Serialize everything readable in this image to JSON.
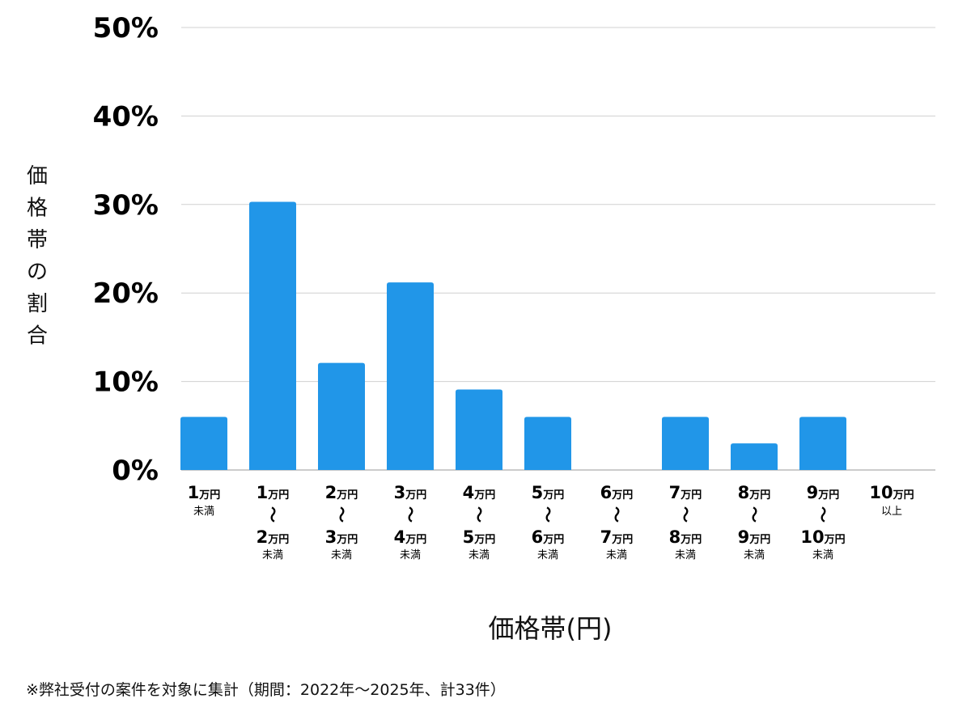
{
  "chart_data": {
    "type": "bar",
    "title": "",
    "xlabel": "価格帯(円)",
    "ylabel": "価格帯の割合",
    "ylim": [
      0,
      50
    ],
    "yticks": [
      "0%",
      "10%",
      "20%",
      "30%",
      "40%",
      "50%"
    ],
    "grid": true,
    "bar_color": "#2196e8",
    "categories": [
      {
        "top_num": "1",
        "top_unit": "万円",
        "wave": "",
        "bottom_num": "",
        "bottom_unit": "",
        "note": "未満"
      },
      {
        "top_num": "1",
        "top_unit": "万円",
        "wave": "〜",
        "bottom_num": "2",
        "bottom_unit": "万円",
        "note": "未満"
      },
      {
        "top_num": "2",
        "top_unit": "万円",
        "wave": "〜",
        "bottom_num": "3",
        "bottom_unit": "万円",
        "note": "未満"
      },
      {
        "top_num": "3",
        "top_unit": "万円",
        "wave": "〜",
        "bottom_num": "4",
        "bottom_unit": "万円",
        "note": "未満"
      },
      {
        "top_num": "4",
        "top_unit": "万円",
        "wave": "〜",
        "bottom_num": "5",
        "bottom_unit": "万円",
        "note": "未満"
      },
      {
        "top_num": "5",
        "top_unit": "万円",
        "wave": "〜",
        "bottom_num": "6",
        "bottom_unit": "万円",
        "note": "未満"
      },
      {
        "top_num": "6",
        "top_unit": "万円",
        "wave": "〜",
        "bottom_num": "7",
        "bottom_unit": "万円",
        "note": "未満"
      },
      {
        "top_num": "7",
        "top_unit": "万円",
        "wave": "〜",
        "bottom_num": "8",
        "bottom_unit": "万円",
        "note": "未満"
      },
      {
        "top_num": "8",
        "top_unit": "万円",
        "wave": "〜",
        "bottom_num": "9",
        "bottom_unit": "万円",
        "note": "未満"
      },
      {
        "top_num": "9",
        "top_unit": "万円",
        "wave": "〜",
        "bottom_num": "10",
        "bottom_unit": "万円",
        "note": "未満"
      },
      {
        "top_num": "10",
        "top_unit": "万円",
        "wave": "",
        "bottom_num": "",
        "bottom_unit": "",
        "note": "以上"
      }
    ],
    "values": [
      6,
      30.3,
      12.1,
      21.2,
      9.1,
      6,
      0,
      6,
      3,
      6,
      0
    ]
  },
  "footnote": "※弊社受付の案件を対象に集計（期間：2022年〜2025年、計33件）"
}
